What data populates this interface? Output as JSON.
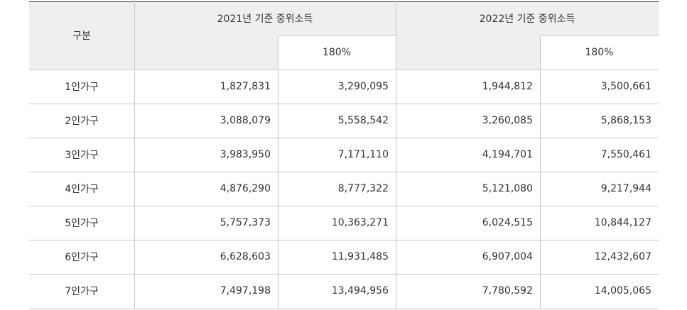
{
  "table": {
    "header": {
      "category": "구분",
      "group_2021": "2021년 기준 중위소득",
      "group_2022": "2022년 기준 중위소득",
      "sub_2021": "180%",
      "sub_2022": "180%"
    },
    "rows": [
      {
        "label": "1인가구",
        "median_2021": "1,827,831",
        "pct_2021": "3,290,095",
        "median_2022": "1,944,812",
        "pct_2022": "3,500,661"
      },
      {
        "label": "2인가구",
        "median_2021": "3,088,079",
        "pct_2021": "5,558,542",
        "median_2022": "3,260,085",
        "pct_2022": "5,868,153"
      },
      {
        "label": "3인가구",
        "median_2021": "3,983,950",
        "pct_2021": "7,171,110",
        "median_2022": "4,194,701",
        "pct_2022": "7,550,461"
      },
      {
        "label": "4인가구",
        "median_2021": "4,876,290",
        "pct_2021": "8,777,322",
        "median_2022": "5,121,080",
        "pct_2022": "9,217,944"
      },
      {
        "label": "5인가구",
        "median_2021": "5,757,373",
        "pct_2021": "10,363,271",
        "median_2022": "6,024,515",
        "pct_2022": "10,844,127"
      },
      {
        "label": "6인가구",
        "median_2021": "6,628,603",
        "pct_2021": "11,931,485",
        "median_2022": "6,907,004",
        "pct_2022": "12,432,607"
      },
      {
        "label": "7인가구",
        "median_2021": "7,497,198",
        "pct_2021": "13,494,956",
        "median_2022": "7,780,592",
        "pct_2022": "14,005,065"
      }
    ]
  }
}
